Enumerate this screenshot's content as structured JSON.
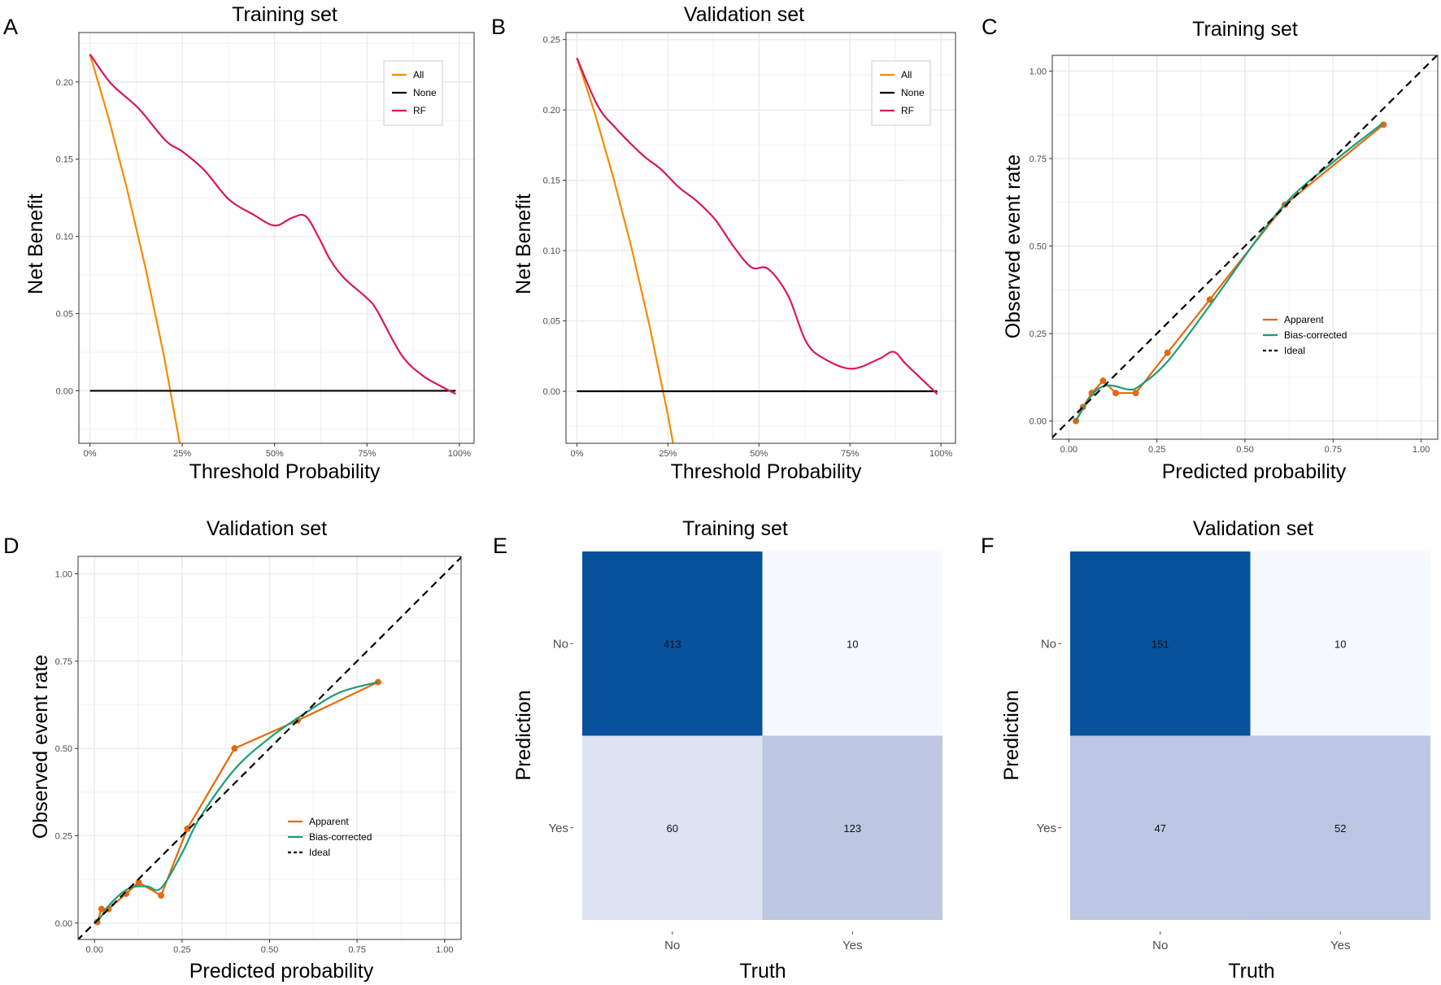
{
  "chart_data": [
    {
      "panel": "A",
      "type": "line",
      "title": "Training set",
      "xlabel": "Threshold Probability",
      "ylabel": "Net Benefit",
      "xticks": [
        "0%",
        "25%",
        "50%",
        "75%",
        "100%"
      ],
      "yticks": [
        "0.00",
        "0.05",
        "0.10",
        "0.15",
        "0.20"
      ],
      "xlim": [
        0,
        1
      ],
      "ylim": [
        -0.034,
        0.232
      ],
      "grid": true,
      "legend_position": "top-right",
      "series": [
        {
          "name": "All",
          "color": "#f28c00",
          "points": [
            [
              0,
              0.218
            ],
            [
              0.05,
              0.177
            ],
            [
              0.1,
              0.131
            ],
            [
              0.15,
              0.08
            ],
            [
              0.2,
              0.023
            ],
            [
              0.25,
              -0.043
            ]
          ]
        },
        {
          "name": "None",
          "color": "#000000",
          "points": [
            [
              0,
              0
            ],
            [
              0.99,
              0
            ]
          ]
        },
        {
          "name": "RF",
          "color": "#d9175f",
          "points": [
            [
              0,
              0.218
            ],
            [
              0.057,
              0.199
            ],
            [
              0.131,
              0.183
            ],
            [
              0.205,
              0.162
            ],
            [
              0.25,
              0.155
            ],
            [
              0.309,
              0.143
            ],
            [
              0.376,
              0.124
            ],
            [
              0.443,
              0.114
            ],
            [
              0.5,
              0.107
            ],
            [
              0.547,
              0.112
            ],
            [
              0.584,
              0.113
            ],
            [
              0.62,
              0.099
            ],
            [
              0.65,
              0.085
            ],
            [
              0.688,
              0.073
            ],
            [
              0.75,
              0.06
            ],
            [
              0.777,
              0.052
            ],
            [
              0.844,
              0.023
            ],
            [
              0.9,
              0.01
            ],
            [
              0.95,
              0.003
            ],
            [
              0.99,
              -0.002
            ]
          ]
        }
      ]
    },
    {
      "panel": "B",
      "type": "line",
      "title": "Validation set",
      "xlabel": "Threshold Probability",
      "ylabel": "Net Benefit",
      "xticks": [
        "0%",
        "25%",
        "50%",
        "75%",
        "100%"
      ],
      "yticks": [
        "0.00",
        "0.05",
        "0.10",
        "0.15",
        "0.20",
        "0.25"
      ],
      "xlim": [
        0,
        1
      ],
      "ylim": [
        -0.037,
        0.255
      ],
      "grid": true,
      "legend_position": "top-right",
      "series": [
        {
          "name": "All",
          "color": "#f28c00",
          "points": [
            [
              0,
              0.237
            ],
            [
              0.05,
              0.197
            ],
            [
              0.1,
              0.152
            ],
            [
              0.15,
              0.102
            ],
            [
              0.2,
              0.046
            ],
            [
              0.25,
              -0.017
            ],
            [
              0.27,
              -0.045
            ]
          ]
        },
        {
          "name": "None",
          "color": "#000000",
          "points": [
            [
              0,
              0
            ],
            [
              0.99,
              0
            ]
          ]
        },
        {
          "name": "RF",
          "color": "#d9175f",
          "points": [
            [
              0,
              0.237
            ],
            [
              0.057,
              0.203
            ],
            [
              0.107,
              0.187
            ],
            [
              0.18,
              0.168
            ],
            [
              0.23,
              0.158
            ],
            [
              0.28,
              0.145
            ],
            [
              0.33,
              0.135
            ],
            [
              0.38,
              0.122
            ],
            [
              0.43,
              0.103
            ],
            [
              0.48,
              0.088
            ],
            [
              0.525,
              0.087
            ],
            [
              0.58,
              0.068
            ],
            [
              0.63,
              0.035
            ],
            [
              0.68,
              0.023
            ],
            [
              0.755,
              0.016
            ],
            [
              0.83,
              0.023
            ],
            [
              0.87,
              0.028
            ],
            [
              0.905,
              0.019
            ],
            [
              0.99,
              -0.002
            ]
          ]
        }
      ]
    },
    {
      "panel": "C",
      "type": "line",
      "title": "Training set",
      "xlabel": "Predicted probability",
      "ylabel": "Observed event rate",
      "xticks": [
        "0.00",
        "0.25",
        "0.50",
        "0.75",
        "1.00"
      ],
      "yticks": [
        "0.00",
        "0.25",
        "0.50",
        "0.75",
        "1.00"
      ],
      "xlim": [
        0,
        1
      ],
      "ylim": [
        0,
        1
      ],
      "grid": true,
      "legend_position": "right",
      "series": [
        {
          "name": "Apparent",
          "color": "#e5690f",
          "markers": true,
          "points": [
            [
              0.02,
              0.0
            ],
            [
              0.04,
              0.04
            ],
            [
              0.065,
              0.08
            ],
            [
              0.097,
              0.115
            ],
            [
              0.133,
              0.08
            ],
            [
              0.19,
              0.08
            ],
            [
              0.28,
              0.195
            ],
            [
              0.4,
              0.347
            ],
            [
              0.613,
              0.618
            ],
            [
              0.893,
              0.847
            ]
          ]
        },
        {
          "name": "Bias-corrected",
          "color": "#1b9e77",
          "points": [
            [
              0.02,
              0.0
            ],
            [
              0.04,
              0.035
            ],
            [
              0.07,
              0.08
            ],
            [
              0.1,
              0.1
            ],
            [
              0.13,
              0.1
            ],
            [
              0.17,
              0.09
            ],
            [
              0.2,
              0.1
            ],
            [
              0.28,
              0.17
            ],
            [
              0.4,
              0.33
            ],
            [
              0.6,
              0.605
            ],
            [
              0.75,
              0.74
            ],
            [
              0.89,
              0.85
            ]
          ]
        },
        {
          "name": "Ideal",
          "color": "#000000",
          "dashed": true,
          "points": [
            [
              -0.05,
              -0.05
            ],
            [
              1.05,
              1.05
            ]
          ]
        }
      ]
    },
    {
      "panel": "D",
      "type": "line",
      "title": "Validation set",
      "xlabel": "Predicted probability",
      "ylabel": "Observed event rate",
      "xticks": [
        "0.00",
        "0.25",
        "0.50",
        "0.75",
        "1.00"
      ],
      "yticks": [
        "0.00",
        "0.25",
        "0.50",
        "0.75",
        "1.00"
      ],
      "xlim": [
        0,
        1
      ],
      "ylim": [
        0,
        1
      ],
      "grid": true,
      "legend_position": "right",
      "series": [
        {
          "name": "Apparent",
          "color": "#e5690f",
          "markers": true,
          "points": [
            [
              0.008,
              0.003
            ],
            [
              0.02,
              0.04
            ],
            [
              0.04,
              0.04
            ],
            [
              0.09,
              0.084
            ],
            [
              0.126,
              0.116
            ],
            [
              0.19,
              0.079
            ],
            [
              0.265,
              0.27
            ],
            [
              0.4,
              0.5
            ],
            [
              0.58,
              0.58
            ],
            [
              0.81,
              0.69
            ]
          ]
        },
        {
          "name": "Bias-corrected",
          "color": "#1b9e77",
          "points": [
            [
              0.008,
              0.003
            ],
            [
              0.05,
              0.06
            ],
            [
              0.1,
              0.1
            ],
            [
              0.15,
              0.105
            ],
            [
              0.19,
              0.1
            ],
            [
              0.25,
              0.2
            ],
            [
              0.3,
              0.3
            ],
            [
              0.4,
              0.44
            ],
            [
              0.5,
              0.53
            ],
            [
              0.6,
              0.6
            ],
            [
              0.7,
              0.66
            ],
            [
              0.81,
              0.69
            ]
          ]
        },
        {
          "name": "Ideal",
          "color": "#000000",
          "dashed": true,
          "points": [
            [
              -0.05,
              -0.05
            ],
            [
              1.05,
              1.05
            ]
          ]
        }
      ]
    },
    {
      "panel": "E",
      "type": "heatmap",
      "title": "Training set",
      "xlabel": "Truth",
      "ylabel": "Prediction",
      "x_categories": [
        "No",
        "Yes"
      ],
      "y_categories": [
        "No",
        "Yes"
      ],
      "cells": [
        {
          "prediction": "No",
          "truth": "No",
          "value": 413,
          "color": "#08519c"
        },
        {
          "prediction": "No",
          "truth": "Yes",
          "value": 10,
          "color": "#f5f8fd"
        },
        {
          "prediction": "Yes",
          "truth": "No",
          "value": 60,
          "color": "#dde3f2"
        },
        {
          "prediction": "Yes",
          "truth": "Yes",
          "value": 123,
          "color": "#bdc7e2"
        }
      ]
    },
    {
      "panel": "F",
      "type": "heatmap",
      "title": "Validation set",
      "xlabel": "Truth",
      "ylabel": "Prediction",
      "x_categories": [
        "No",
        "Yes"
      ],
      "y_categories": [
        "No",
        "Yes"
      ],
      "cells": [
        {
          "prediction": "No",
          "truth": "No",
          "value": 151,
          "color": "#08519c"
        },
        {
          "prediction": "No",
          "truth": "Yes",
          "value": 10,
          "color": "#f5f8fd"
        },
        {
          "prediction": "Yes",
          "truth": "No",
          "value": 47,
          "color": "#bdc6e2"
        },
        {
          "prediction": "Yes",
          "truth": "Yes",
          "value": 52,
          "color": "#bcc5e1"
        }
      ]
    }
  ]
}
